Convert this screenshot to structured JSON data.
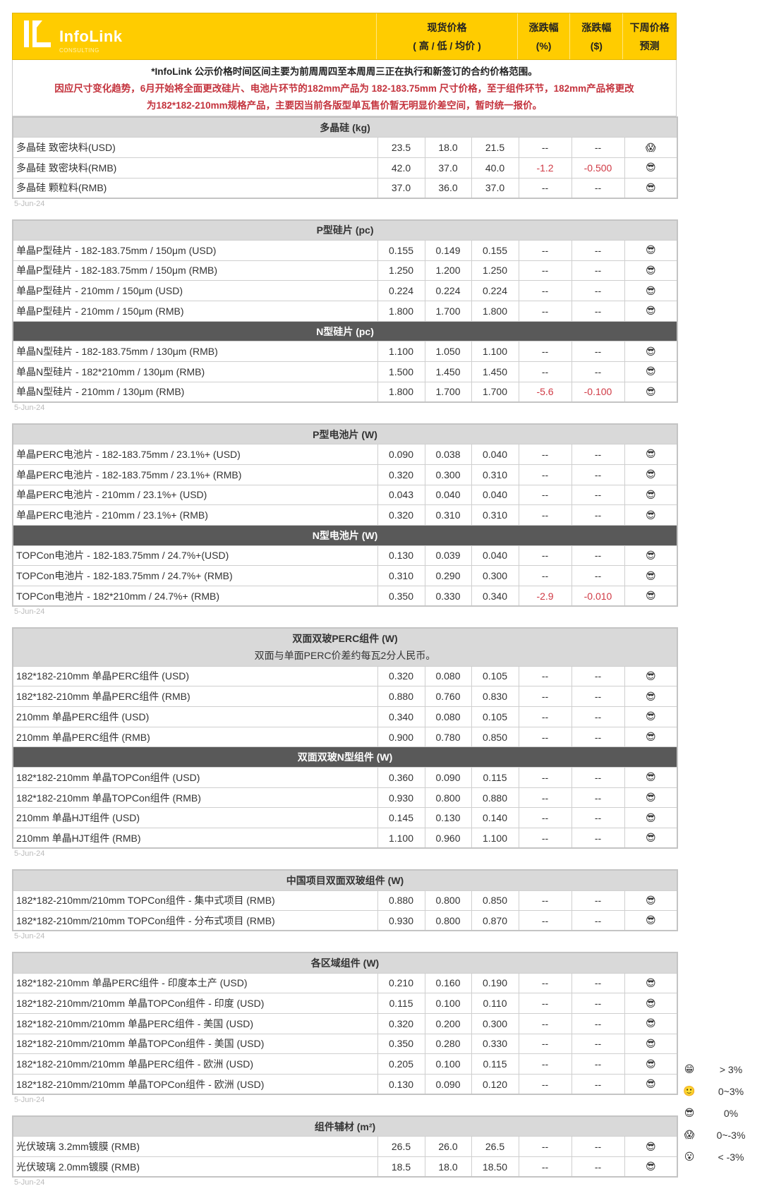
{
  "header": {
    "logo_text": "InfoLink",
    "logo_sub": "CONSULTING",
    "col_price": "现货价格",
    "col_price_sub": "( 高 / 低 / 均价 )",
    "col_pct": "涨跌幅",
    "col_pct_unit": "(%)",
    "col_usd": "涨跌幅",
    "col_usd_unit": "($)",
    "col_forecast_1": "下周价格",
    "col_forecast_2": "预测",
    "brand_color": "#FFCC00"
  },
  "notes": [
    "*InfoLink 公示价格时间区间主要为前周周四至本周周三正在执行和新签订的合约价格范围。",
    "因应尺寸变化趋势，6月开始将全面更改硅片、电池片环节的182mm产品为 182-183.75mm 尺寸价格，至于组件环节，182mm产品将更改",
    "为182*182-210mm规格产品，主要因当前各版型单瓦售价暂无明显价差空间，暂时统一报价。"
  ],
  "tables": [
    {
      "date": "5-Jun-24",
      "groups": [
        {
          "title": "多晶硅 (kg)",
          "style": "light",
          "rows": [
            {
              "label": "多晶硅 致密块料(USD)",
              "high": "23.5",
              "low": "18.0",
              "avg": "21.5",
              "pct": "--",
              "usd": "--",
              "forecast": "scream"
            },
            {
              "label": "多晶硅 致密块料(RMB)",
              "high": "42.0",
              "low": "37.0",
              "avg": "40.0",
              "pct": "-1.2",
              "usd": "-0.500",
              "forecast": "sunglasses"
            },
            {
              "label": "多晶硅 颗粒料(RMB)",
              "high": "37.0",
              "low": "36.0",
              "avg": "37.0",
              "pct": "--",
              "usd": "--",
              "forecast": "sunglasses"
            }
          ]
        }
      ]
    },
    {
      "date": "5-Jun-24",
      "groups": [
        {
          "title": "P型硅片 (pc)",
          "style": "light",
          "rows": [
            {
              "label": "单晶P型硅片 - 182-183.75mm / 150μm (USD)",
              "high": "0.155",
              "low": "0.149",
              "avg": "0.155",
              "pct": "--",
              "usd": "--",
              "forecast": "sunglasses"
            },
            {
              "label": "单晶P型硅片 - 182-183.75mm / 150μm (RMB)",
              "high": "1.250",
              "low": "1.200",
              "avg": "1.250",
              "pct": "--",
              "usd": "--",
              "forecast": "sunglasses"
            },
            {
              "label": "单晶P型硅片 - 210mm / 150μm (USD)",
              "high": "0.224",
              "low": "0.224",
              "avg": "0.224",
              "pct": "--",
              "usd": "--",
              "forecast": "sunglasses"
            },
            {
              "label": "单晶P型硅片 - 210mm / 150μm (RMB)",
              "high": "1.800",
              "low": "1.700",
              "avg": "1.800",
              "pct": "--",
              "usd": "--",
              "forecast": "sunglasses"
            }
          ]
        },
        {
          "title": "N型硅片 (pc)",
          "style": "dark",
          "rows": [
            {
              "label": "单晶N型硅片 - 182-183.75mm / 130μm (RMB)",
              "high": "1.100",
              "low": "1.050",
              "avg": "1.100",
              "pct": "--",
              "usd": "--",
              "forecast": "sunglasses"
            },
            {
              "label": "单晶N型硅片 - 182*210mm / 130μm (RMB)",
              "high": "1.500",
              "low": "1.450",
              "avg": "1.450",
              "pct": "--",
              "usd": "--",
              "forecast": "sunglasses"
            },
            {
              "label": "单晶N型硅片 - 210mm / 130μm (RMB)",
              "high": "1.800",
              "low": "1.700",
              "avg": "1.700",
              "pct": "-5.6",
              "usd": "-0.100",
              "forecast": "sunglasses"
            }
          ]
        }
      ]
    },
    {
      "date": "5-Jun-24",
      "groups": [
        {
          "title": "P型电池片 (W)",
          "style": "light",
          "rows": [
            {
              "label": "单晶PERC电池片 - 182-183.75mm / 23.1%+ (USD)",
              "high": "0.090",
              "low": "0.038",
              "avg": "0.040",
              "pct": "--",
              "usd": "--",
              "forecast": "sunglasses"
            },
            {
              "label": "单晶PERC电池片 - 182-183.75mm / 23.1%+ (RMB)",
              "high": "0.320",
              "low": "0.300",
              "avg": "0.310",
              "pct": "--",
              "usd": "--",
              "forecast": "sunglasses"
            },
            {
              "label": "单晶PERC电池片 - 210mm / 23.1%+ (USD)",
              "high": "0.043",
              "low": "0.040",
              "avg": "0.040",
              "pct": "--",
              "usd": "--",
              "forecast": "sunglasses"
            },
            {
              "label": "单晶PERC电池片 - 210mm / 23.1%+ (RMB)",
              "high": "0.320",
              "low": "0.310",
              "avg": "0.310",
              "pct": "--",
              "usd": "--",
              "forecast": "sunglasses"
            }
          ]
        },
        {
          "title": "N型电池片 (W)",
          "style": "dark",
          "rows": [
            {
              "label": "TOPCon电池片 - 182-183.75mm / 24.7%+(USD)",
              "high": "0.130",
              "low": "0.039",
              "avg": "0.040",
              "pct": "--",
              "usd": "--",
              "forecast": "sunglasses"
            },
            {
              "label": "TOPCon电池片 - 182-183.75mm / 24.7%+ (RMB)",
              "high": "0.310",
              "low": "0.290",
              "avg": "0.300",
              "pct": "--",
              "usd": "--",
              "forecast": "sunglasses"
            },
            {
              "label": "TOPCon电池片 - 182*210mm / 24.7%+ (RMB)",
              "high": "0.350",
              "low": "0.330",
              "avg": "0.340",
              "pct": "-2.9",
              "usd": "-0.010",
              "forecast": "sunglasses"
            }
          ]
        }
      ]
    },
    {
      "date": "5-Jun-24",
      "groups": [
        {
          "title": "双面双玻PERC组件 (W)",
          "subtitle": "双面与单面PERC价差约每瓦2分人民币。",
          "style": "light",
          "rows": [
            {
              "label": "182*182-210mm 单晶PERC组件 (USD)",
              "high": "0.320",
              "low": "0.080",
              "avg": "0.105",
              "pct": "--",
              "usd": "--",
              "forecast": "sunglasses"
            },
            {
              "label": "182*182-210mm 单晶PERC组件 (RMB)",
              "high": "0.880",
              "low": "0.760",
              "avg": "0.830",
              "pct": "--",
              "usd": "--",
              "forecast": "sunglasses"
            },
            {
              "label": "210mm 单晶PERC组件 (USD)",
              "high": "0.340",
              "low": "0.080",
              "avg": "0.105",
              "pct": "--",
              "usd": "--",
              "forecast": "sunglasses"
            },
            {
              "label": "210mm 单晶PERC组件 (RMB)",
              "high": "0.900",
              "low": "0.780",
              "avg": "0.850",
              "pct": "--",
              "usd": "--",
              "forecast": "sunglasses"
            }
          ]
        },
        {
          "title": "双面双玻N型组件 (W)",
          "style": "dark",
          "rows": [
            {
              "label": "182*182-210mm 单晶TOPCon组件 (USD)",
              "high": "0.360",
              "low": "0.090",
              "avg": "0.115",
              "pct": "--",
              "usd": "--",
              "forecast": "sunglasses"
            },
            {
              "label": "182*182-210mm 单晶TOPCon组件 (RMB)",
              "high": "0.930",
              "low": "0.800",
              "avg": "0.880",
              "pct": "--",
              "usd": "--",
              "forecast": "sunglasses"
            },
            {
              "label": "210mm 单晶HJT组件 (USD)",
              "high": "0.145",
              "low": "0.130",
              "avg": "0.140",
              "pct": "--",
              "usd": "--",
              "forecast": "sunglasses"
            },
            {
              "label": "210mm 单晶HJT组件 (RMB)",
              "high": "1.100",
              "low": "0.960",
              "avg": "1.100",
              "pct": "--",
              "usd": "--",
              "forecast": "sunglasses"
            }
          ]
        }
      ]
    },
    {
      "date": "5-Jun-24",
      "groups": [
        {
          "title": "中国项目双面双玻组件 (W)",
          "style": "light",
          "rows": [
            {
              "label": "182*182-210mm/210mm TOPCon组件 - 集中式项目 (RMB)",
              "high": "0.880",
              "low": "0.800",
              "avg": "0.850",
              "pct": "--",
              "usd": "--",
              "forecast": "sunglasses"
            },
            {
              "label": "182*182-210mm/210mm TOPCon组件 - 分布式项目 (RMB)",
              "high": "0.930",
              "low": "0.800",
              "avg": "0.870",
              "pct": "--",
              "usd": "--",
              "forecast": "sunglasses"
            }
          ]
        }
      ]
    },
    {
      "date": "5-Jun-24",
      "groups": [
        {
          "title": "各区域组件 (W)",
          "style": "light",
          "rows": [
            {
              "label": "182*182-210mm 单晶PERC组件 - 印度本土产 (USD)",
              "high": "0.210",
              "low": "0.160",
              "avg": "0.190",
              "pct": "--",
              "usd": "--",
              "forecast": "sunglasses"
            },
            {
              "label": "182*182-210mm/210mm 单晶TOPCon组件 - 印度 (USD)",
              "high": "0.115",
              "low": "0.100",
              "avg": "0.110",
              "pct": "--",
              "usd": "--",
              "forecast": "sunglasses"
            },
            {
              "label": "182*182-210mm/210mm 单晶PERC组件 - 美国 (USD)",
              "high": "0.320",
              "low": "0.200",
              "avg": "0.300",
              "pct": "--",
              "usd": "--",
              "forecast": "sunglasses"
            },
            {
              "label": "182*182-210mm/210mm 单晶TOPCon组件 - 美国 (USD)",
              "high": "0.350",
              "low": "0.280",
              "avg": "0.330",
              "pct": "--",
              "usd": "--",
              "forecast": "sunglasses"
            },
            {
              "label": "182*182-210mm/210mm 单晶PERC组件 - 欧洲 (USD)",
              "high": "0.205",
              "low": "0.100",
              "avg": "0.115",
              "pct": "--",
              "usd": "--",
              "forecast": "sunglasses"
            },
            {
              "label": "182*182-210mm/210mm 单晶TOPCon组件 - 欧洲 (USD)",
              "high": "0.130",
              "low": "0.090",
              "avg": "0.120",
              "pct": "--",
              "usd": "--",
              "forecast": "sunglasses"
            }
          ]
        }
      ]
    },
    {
      "date": "5-Jun-24",
      "groups": [
        {
          "title": "组件辅材 (m²)",
          "style": "light",
          "rows": [
            {
              "label": "光伏玻璃 3.2mm镀膜 (RMB)",
              "high": "26.5",
              "low": "26.0",
              "avg": "26.5",
              "pct": "--",
              "usd": "--",
              "forecast": "sunglasses"
            },
            {
              "label": "光伏玻璃 2.0mm镀膜 (RMB)",
              "high": "18.5",
              "low": "18.0",
              "avg": "18.50",
              "pct": "--",
              "usd": "--",
              "forecast": "sunglasses"
            }
          ]
        }
      ]
    }
  ],
  "legend": [
    {
      "icon": "grinning",
      "label": "> 3%"
    },
    {
      "icon": "smiling",
      "label": "0~3%"
    },
    {
      "icon": "sunglasses",
      "label": "0%"
    },
    {
      "icon": "scream",
      "label": "0~-3%"
    },
    {
      "icon": "astonished",
      "label": "< -3%"
    }
  ],
  "colors": {
    "header": "#FFCC00",
    "negative": "#D03A45",
    "group_light": "#D9D9D9",
    "group_dark": "#595959",
    "notice_red": "#C4333D"
  }
}
